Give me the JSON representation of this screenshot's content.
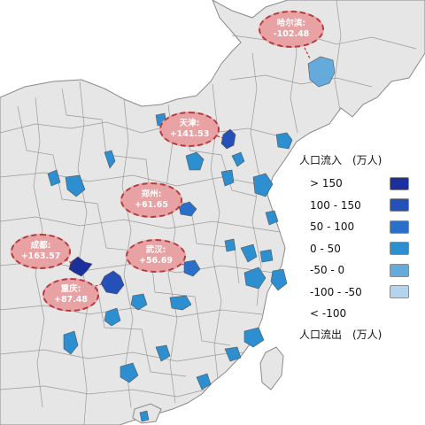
{
  "legend": {
    "title_in": "人口流入　(万人)",
    "title_out": "人口流出　(万人)",
    "items": [
      {
        "label": "> 150",
        "color": "#1d2f9a"
      },
      {
        "label": "100 - 150",
        "color": "#2450b7"
      },
      {
        "label": "50 - 100",
        "color": "#2b70c8"
      },
      {
        "label": "0 - 50",
        "color": "#2d8fd0"
      },
      {
        "label": "-50 - 0",
        "color": "#64aadb"
      },
      {
        "label": "-100 - -50",
        "color": "#b2d4ef"
      },
      {
        "label": "< -100",
        "color": ""
      }
    ]
  },
  "callouts": [
    {
      "city": "哈尔滨:",
      "value": "-102.48"
    },
    {
      "city": "天津:",
      "value": "+141.53"
    },
    {
      "city": "郑州:",
      "value": "+61.65"
    },
    {
      "city": "成都:",
      "value": "+163.57"
    },
    {
      "city": "武汉:",
      "value": "+56.69"
    },
    {
      "city": "重庆:",
      "value": "+87.48"
    }
  ],
  "colors": {
    "land": "#e6e6e6",
    "border": "#8a8a8a",
    "callout_fill": "#e8a2a4",
    "callout_border": "#b33a3e"
  }
}
